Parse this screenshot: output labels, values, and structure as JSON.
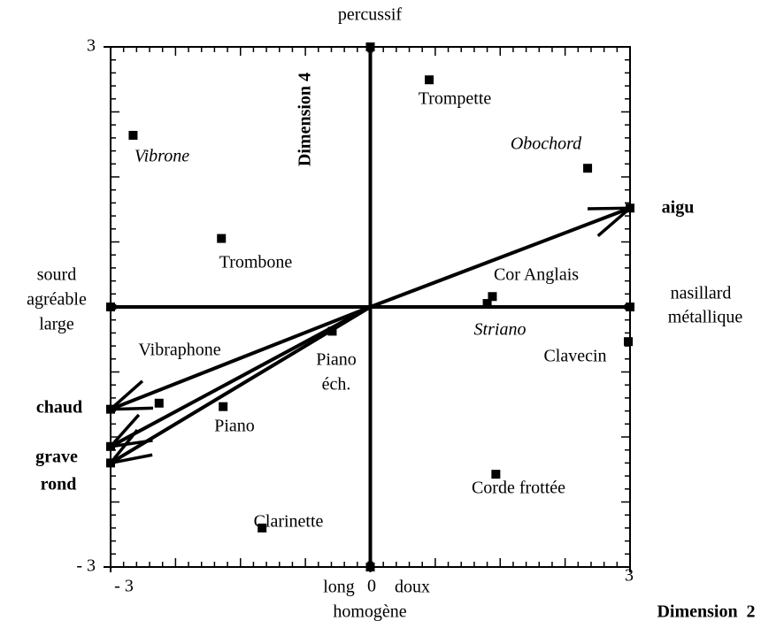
{
  "chart_data": {
    "type": "scatter",
    "xlabel": "Dimension  2",
    "ylabel": "Dimension  4",
    "xlim": [
      -3,
      3
    ],
    "ylim": [
      -3,
      3
    ],
    "xticks": [
      {
        "value": -3,
        "label": "- 3"
      },
      0,
      3
    ],
    "yticks": [
      {
        "value": -3,
        "label": "- 3"
      },
      3
    ],
    "color": "#000000",
    "points": [
      {
        "label": "Trompette",
        "x": 0.68,
        "y": 2.62
      },
      {
        "label": "Vibrone",
        "x": -2.74,
        "y": 1.98,
        "italic": true
      },
      {
        "label": "Obochord",
        "x": 2.51,
        "y": 1.6,
        "italic": true
      },
      {
        "label": "Trombone",
        "x": -1.72,
        "y": 0.79
      },
      {
        "label": "Cor Anglais",
        "x": 1.41,
        "y": 0.12
      },
      {
        "label": "Striano",
        "x": 1.35,
        "y": 0.04,
        "italic": true
      },
      {
        "label": "Clavecin",
        "x": 2.98,
        "y": -0.4
      },
      {
        "label": [
          "Piano",
          "éch."
        ],
        "x": -0.44,
        "y": -0.28
      },
      {
        "label": "Vibraphone",
        "x": -2.44,
        "y": -1.11
      },
      {
        "label": "Piano",
        "x": -1.7,
        "y": -1.15
      },
      {
        "label": "Corde frottée",
        "x": 1.45,
        "y": -1.93
      },
      {
        "label": "Clarinette",
        "x": -1.25,
        "y": -2.55
      }
    ],
    "vectors": [
      {
        "label": "aigu",
        "x": 3,
        "y": 1.14
      },
      {
        "label": "chaud",
        "x": -3,
        "y": -1.18
      },
      {
        "label": "grave",
        "x": -3,
        "y": -1.61
      },
      {
        "label": "rond",
        "x": -3,
        "y": -1.8
      }
    ],
    "poles": [
      {
        "lines": [
          "percussif"
        ],
        "x": 0,
        "y": 3
      },
      {
        "lines": [
          "long",
          "doux",
          "homogène"
        ],
        "x": 0,
        "y": -3
      },
      {
        "lines": [
          "sourd",
          "agréable",
          "large"
        ],
        "x": -3,
        "y": 0
      },
      {
        "lines": [
          "nasillard",
          "métallique"
        ],
        "x": 3,
        "y": 0
      }
    ]
  }
}
